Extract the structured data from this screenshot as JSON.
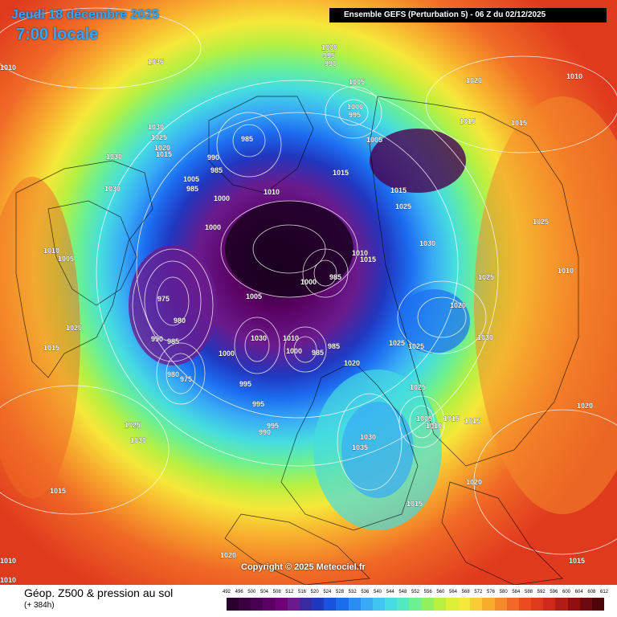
{
  "header": {
    "date": "Jeudi 18 décembre 2025",
    "time": "7:00 locale",
    "run_info": "Ensemble GEFS  (Perturbation 5)  -  06 Z du 02/12/2025"
  },
  "copyright": "Copyright © 2025 Meteociel.fr",
  "legend": {
    "title": "Géop. Z500 & pression au sol",
    "subtitle": "(+ 384h)",
    "scale": [
      "492",
      "496",
      "500",
      "504",
      "508",
      "512",
      "516",
      "520",
      "524",
      "528",
      "532",
      "536",
      "540",
      "544",
      "548",
      "552",
      "556",
      "560",
      "564",
      "568",
      "572",
      "576",
      "580",
      "584",
      "588",
      "592",
      "596",
      "600",
      "604",
      "608",
      "612"
    ],
    "colors": [
      "#28002e",
      "#3a003f",
      "#4a0050",
      "#5a0062",
      "#700078",
      "#6a1c8e",
      "#3a2aa0",
      "#2038c0",
      "#1a52e0",
      "#1c6cf0",
      "#2a8cf4",
      "#38aaf6",
      "#40c6f0",
      "#46dce0",
      "#52e8c0",
      "#6cf090",
      "#90f060",
      "#b8f040",
      "#dcf03a",
      "#f6e83a",
      "#f8cc34",
      "#f8ac2e",
      "#f48a2a",
      "#f06a26",
      "#ec4c22",
      "#e03a1e",
      "#cc2a1a",
      "#b01c16",
      "#901012",
      "#6c0a0e",
      "#4c060a"
    ]
  },
  "pressure_labels": [
    "1010",
    "1035",
    "1000",
    "995",
    "990",
    "1005",
    "1020",
    "1010",
    "1000",
    "995",
    "1005",
    "1015",
    "985",
    "1030",
    "1025",
    "1020",
    "1015",
    "1015",
    "990",
    "985",
    "1005",
    "1015",
    "1030",
    "985",
    "1010",
    "1025",
    "1000",
    "1025",
    "1000",
    "1030",
    "1010",
    "1015",
    "1005",
    "1010",
    "1010",
    "1000",
    "985",
    "1025",
    "975",
    "980",
    "1005",
    "1015",
    "1030",
    "985",
    "1020",
    "990",
    "985",
    "1030",
    "1010",
    "1000",
    "985",
    "1020",
    "1025",
    "1025",
    "1030",
    "1000",
    "995",
    "980",
    "975",
    "995",
    "1025",
    "1015",
    "1020",
    "1005",
    "1010",
    "995",
    "1015",
    "1025",
    "990",
    "1030",
    "1035",
    "1015",
    "1030",
    "1020",
    "1015",
    "1015",
    "1020",
    "1010",
    "1020",
    "1015",
    "1010"
  ],
  "map_layers": [
    "geopotential-z500-field",
    "sea-level-pressure-isobars",
    "coastlines"
  ]
}
